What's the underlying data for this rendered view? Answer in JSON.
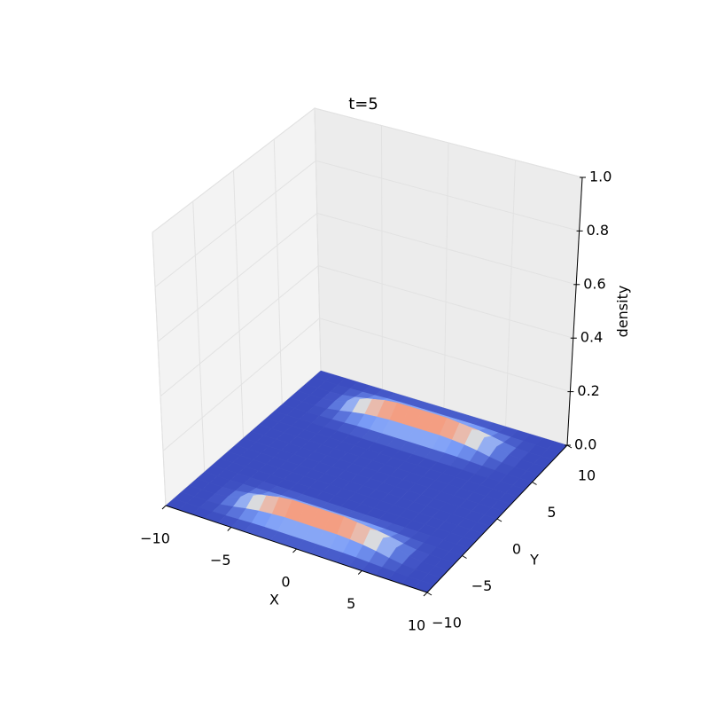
{
  "chart_data": {
    "type": "surface",
    "title": "t=5",
    "xlabel": "X",
    "ylabel": "Y",
    "zlabel": "density",
    "colormap": "coolwarm",
    "grid": true,
    "x": [
      -10,
      -9,
      -8,
      -7,
      -6,
      -5,
      -4,
      -3,
      -2,
      -1,
      0,
      1,
      2,
      3,
      4,
      5,
      6,
      7,
      8,
      9,
      10
    ],
    "y": [
      -10,
      -9,
      -8,
      -7,
      -6,
      -5,
      -4,
      -3,
      -2,
      -1,
      0,
      1,
      2,
      3,
      4,
      5,
      6,
      7,
      8,
      9,
      10
    ],
    "z": [
      [
        0,
        0,
        0,
        0,
        0,
        0,
        0,
        0,
        0,
        0,
        0,
        0,
        0,
        0,
        0,
        0,
        0,
        0,
        0,
        0,
        0
      ],
      [
        0,
        0,
        0,
        0.001,
        0.002,
        0.004,
        0.006,
        0.007,
        0.007,
        0.007,
        0.007,
        0.007,
        0.007,
        0.007,
        0.006,
        0.004,
        0.002,
        0.001,
        0,
        0,
        0
      ],
      [
        0,
        0,
        0,
        0.002,
        0.009,
        0.018,
        0.025,
        0.029,
        0.032,
        0.032,
        0.032,
        0.032,
        0.032,
        0.029,
        0.025,
        0.018,
        0.009,
        0.002,
        0,
        0,
        0
      ],
      [
        0,
        0,
        0,
        0.005,
        0.02,
        0.04,
        0.055,
        0.065,
        0.07,
        0.07,
        0.07,
        0.07,
        0.07,
        0.065,
        0.055,
        0.04,
        0.02,
        0.005,
        0,
        0,
        0
      ],
      [
        0,
        0,
        0,
        0.002,
        0.009,
        0.018,
        0.025,
        0.029,
        0.032,
        0.032,
        0.032,
        0.032,
        0.032,
        0.029,
        0.025,
        0.018,
        0.009,
        0.002,
        0,
        0,
        0
      ],
      [
        0,
        0,
        0,
        0.001,
        0.002,
        0.004,
        0.006,
        0.007,
        0.007,
        0.007,
        0.007,
        0.007,
        0.007,
        0.007,
        0.006,
        0.004,
        0.002,
        0.001,
        0,
        0,
        0
      ],
      [
        0,
        0,
        0,
        0,
        0,
        0,
        0,
        0,
        0,
        0,
        0,
        0,
        0,
        0,
        0,
        0,
        0,
        0,
        0,
        0,
        0
      ],
      [
        0,
        0,
        0,
        0,
        0,
        0,
        0,
        0,
        0,
        0,
        0,
        0,
        0,
        0,
        0,
        0,
        0,
        0,
        0,
        0,
        0
      ],
      [
        0,
        0,
        0,
        0,
        0,
        0,
        0,
        0,
        0,
        0,
        0,
        0,
        0,
        0,
        0,
        0,
        0,
        0,
        0,
        0,
        0
      ],
      [
        0,
        0,
        0,
        0,
        0,
        0,
        0,
        0,
        0,
        0,
        0,
        0,
        0,
        0,
        0,
        0,
        0,
        0,
        0,
        0,
        0
      ],
      [
        0,
        0,
        0,
        0,
        0,
        0,
        0,
        0,
        0,
        0,
        0,
        0,
        0,
        0,
        0,
        0,
        0,
        0,
        0,
        0,
        0
      ],
      [
        0,
        0,
        0,
        0,
        0,
        0,
        0,
        0,
        0,
        0,
        0,
        0,
        0,
        0,
        0,
        0,
        0,
        0,
        0,
        0,
        0
      ],
      [
        0,
        0,
        0,
        0,
        0,
        0,
        0,
        0,
        0,
        0,
        0,
        0,
        0,
        0,
        0,
        0,
        0,
        0,
        0,
        0,
        0
      ],
      [
        0,
        0,
        0,
        0,
        0,
        0,
        0,
        0,
        0,
        0,
        0,
        0,
        0,
        0,
        0,
        0,
        0,
        0,
        0,
        0,
        0
      ],
      [
        0,
        0,
        0,
        0,
        0,
        0,
        0,
        0,
        0,
        0,
        0,
        0,
        0,
        0,
        0,
        0,
        0,
        0,
        0,
        0,
        0
      ],
      [
        0,
        0,
        0,
        0.001,
        0.002,
        0.004,
        0.006,
        0.007,
        0.007,
        0.007,
        0.007,
        0.007,
        0.007,
        0.007,
        0.006,
        0.004,
        0.002,
        0.001,
        0,
        0,
        0
      ],
      [
        0,
        0,
        0,
        0.002,
        0.009,
        0.018,
        0.025,
        0.029,
        0.032,
        0.032,
        0.032,
        0.032,
        0.032,
        0.029,
        0.025,
        0.018,
        0.009,
        0.002,
        0,
        0,
        0
      ],
      [
        0,
        0,
        0,
        0.005,
        0.02,
        0.04,
        0.055,
        0.065,
        0.07,
        0.07,
        0.07,
        0.07,
        0.07,
        0.065,
        0.055,
        0.04,
        0.02,
        0.005,
        0,
        0,
        0
      ],
      [
        0,
        0,
        0,
        0.002,
        0.009,
        0.018,
        0.025,
        0.029,
        0.032,
        0.032,
        0.032,
        0.032,
        0.032,
        0.029,
        0.025,
        0.018,
        0.009,
        0.002,
        0,
        0,
        0
      ],
      [
        0,
        0,
        0,
        0.001,
        0.002,
        0.004,
        0.006,
        0.007,
        0.007,
        0.007,
        0.007,
        0.007,
        0.007,
        0.007,
        0.006,
        0.004,
        0.002,
        0.001,
        0,
        0,
        0
      ],
      [
        0,
        0,
        0,
        0,
        0,
        0,
        0,
        0,
        0,
        0,
        0,
        0,
        0,
        0,
        0,
        0,
        0,
        0,
        0,
        0,
        0
      ]
    ],
    "xlim": [
      -10,
      10
    ],
    "ylim": [
      -10,
      10
    ],
    "zlim": [
      0,
      1
    ],
    "xticks": [
      {
        "value": -10,
        "label": "−10"
      },
      {
        "value": -5,
        "label": "−5"
      },
      0,
      5,
      10
    ],
    "yticks": [
      {
        "value": -10,
        "label": "−10"
      },
      {
        "value": -5,
        "label": "−5"
      },
      0,
      5,
      10
    ],
    "zticks": [
      {
        "value": 0,
        "label": "0.0"
      },
      0.2,
      0.4,
      0.6,
      0.8,
      {
        "value": 1,
        "label": "1.0"
      }
    ]
  }
}
